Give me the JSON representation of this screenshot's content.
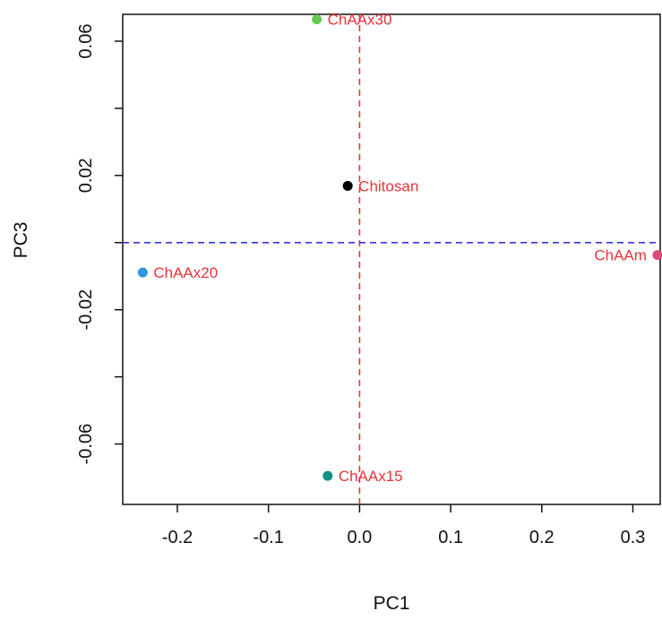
{
  "chart_data": {
    "type": "scatter",
    "title": "",
    "xlabel": "PC1",
    "ylabel": "PC3",
    "xlim": [
      -0.26,
      0.33
    ],
    "ylim": [
      -0.078,
      0.068
    ],
    "x_ticks": [
      -0.2,
      -0.1,
      0.0,
      0.1,
      0.2,
      0.3
    ],
    "x_tick_labels": [
      "-0.2",
      "-0.1",
      "0.0",
      "0.1",
      "0.2",
      "0.3"
    ],
    "y_ticks": [
      0.06,
      0.04,
      0.02,
      0.0,
      -0.02,
      -0.04,
      -0.06
    ],
    "y_tick_labels": [
      "0.06",
      "",
      "0.02",
      "",
      "-0.02",
      "",
      "-0.06"
    ],
    "reference_lines": {
      "vertical": {
        "x": 0.0,
        "color": "#E8333A",
        "style": "dashed"
      },
      "horizontal": {
        "y": 0.0,
        "color": "#3333DD",
        "style": "dashed"
      }
    },
    "label_color": "#E8333A",
    "grid": false,
    "points": [
      {
        "label": "ChAAx30",
        "x": -0.047,
        "y": 0.0665,
        "color": "#61C94F",
        "label_side": "right"
      },
      {
        "label": "Chitosan",
        "x": -0.013,
        "y": 0.0169,
        "color": "#000000",
        "label_side": "right"
      },
      {
        "label": "ChAAm",
        "x": 0.327,
        "y": -0.0037,
        "color": "#DD4B74",
        "label_side": "left"
      },
      {
        "label": "ChAAx20",
        "x": -0.238,
        "y": -0.0089,
        "color": "#2E97DD",
        "label_side": "right"
      },
      {
        "label": "ChAAx15",
        "x": -0.035,
        "y": -0.0695,
        "color": "#139085",
        "label_side": "right"
      }
    ]
  }
}
